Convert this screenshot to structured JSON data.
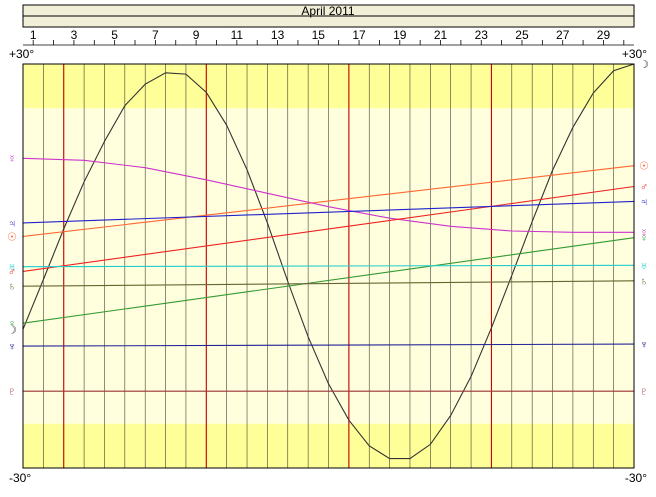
{
  "chart_data": {
    "type": "line",
    "title": "April 2011",
    "days": 30,
    "day_ticks": [
      1,
      2,
      3,
      4,
      5,
      6,
      7,
      8,
      9,
      10,
      11,
      12,
      13,
      14,
      15,
      16,
      17,
      18,
      19,
      20,
      21,
      22,
      23,
      24,
      25,
      26,
      27,
      28,
      29,
      30
    ],
    "day_labels": [
      "1",
      "3",
      "5",
      "7",
      "9",
      "11",
      "13",
      "15",
      "17",
      "19",
      "21",
      "23",
      "25",
      "27",
      "29"
    ],
    "ylim": [
      -30,
      30
    ],
    "y_top_label": "+30°",
    "y_bottom_label": "-30°",
    "shaded_band_limit": 23.44,
    "week_markers": [
      3,
      10,
      17,
      24
    ],
    "colors": {
      "page_bg": "#ffffff",
      "band_outer": "#ffff99",
      "band_inner": "#ffffdd",
      "grid": "#000000",
      "week_line": "#cc0000",
      "header_bg": "#f2efd8"
    },
    "series": [
      {
        "glyph": "☽",
        "color": "#333333",
        "x": [
          1,
          2,
          3,
          4,
          5,
          6,
          7,
          8,
          9,
          10,
          11,
          12,
          13,
          14,
          15,
          16,
          17,
          18,
          19,
          20,
          21,
          22,
          23,
          24,
          25,
          26,
          27,
          28,
          29,
          30,
          31
        ],
        "values": [
          -9.4,
          -2.0,
          5.5,
          12.5,
          18.5,
          23.8,
          27.0,
          28.7,
          28.5,
          25.8,
          20.9,
          14.3,
          6.4,
          -2.3,
          -10.5,
          -17.5,
          -22.9,
          -26.7,
          -28.6,
          -28.6,
          -26.5,
          -22.2,
          -16.4,
          -9.2,
          -1.4,
          6.6,
          14.2,
          20.6,
          25.7,
          29.0,
          30.0
        ]
      },
      {
        "glyph": "☉",
        "color": "#ff6633",
        "x": [
          1,
          31
        ],
        "values": [
          4.4,
          14.9
        ]
      },
      {
        "glyph": "☿",
        "color": "#cc33cc",
        "x": [
          1,
          4,
          7,
          10,
          13,
          16,
          19,
          22,
          25,
          28,
          31
        ],
        "values": [
          16.0,
          15.7,
          14.6,
          12.8,
          10.8,
          8.8,
          7.1,
          5.9,
          5.2,
          5.0,
          5.0
        ]
      },
      {
        "glyph": "♀",
        "color": "#339933",
        "x": [
          1,
          31
        ],
        "values": [
          -8.5,
          4.2
        ]
      },
      {
        "glyph": "♂",
        "color": "#ee2222",
        "x": [
          1,
          31
        ],
        "values": [
          -0.8,
          11.8
        ]
      },
      {
        "glyph": "♃",
        "color": "#2222cc",
        "x": [
          1,
          31
        ],
        "values": [
          6.4,
          9.6
        ]
      },
      {
        "glyph": "♄",
        "color": "#666633",
        "x": [
          1,
          31
        ],
        "values": [
          -3.0,
          -2.2
        ]
      },
      {
        "glyph": "♅",
        "color": "#22cccc",
        "x": [
          1,
          31
        ],
        "values": [
          -0.1,
          0.1
        ]
      },
      {
        "glyph": "♆",
        "color": "#222299",
        "x": [
          1,
          31
        ],
        "values": [
          -11.9,
          -11.6
        ]
      },
      {
        "glyph": "♇",
        "color": "#993333",
        "x": [
          1,
          31
        ],
        "values": [
          -18.6,
          -18.6
        ]
      }
    ]
  }
}
